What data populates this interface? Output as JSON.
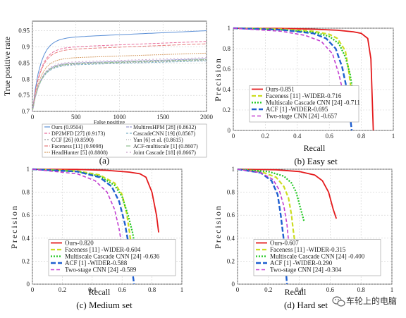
{
  "chart_data": [
    {
      "id": "a",
      "type": "line",
      "caption": "(a)",
      "xlabel": "False positive",
      "ylabel": "True positive rate",
      "xlim": [
        0,
        2000
      ],
      "ylim": [
        0.7,
        0.98
      ],
      "x_ticks": [
        "0",
        "500",
        "1000",
        "1500",
        "2000"
      ],
      "y_ticks": [
        "0.7",
        "0.75",
        "0.8",
        "0.85",
        "0.9",
        "0.95"
      ],
      "grid": true,
      "legend_position": "below",
      "series": [
        {
          "name": "Ours (0.9504)",
          "color": "#5b8fd6",
          "dash": "",
          "final": 0.9504
        },
        {
          "name": "DP2MFD [27] (0.9173)",
          "color": "#e86d9c",
          "dash": "4,2",
          "final": 0.9173
        },
        {
          "name": "CCF [26] (0.8590)",
          "color": "#9a9a9a",
          "dash": "2,2",
          "final": 0.859
        },
        {
          "name": "Faceness [11] (0.9098)",
          "color": "#e87d7d",
          "dash": "5,2",
          "final": 0.9098
        },
        {
          "name": "HeadHunter [5] (0.8808)",
          "color": "#d7a06a",
          "dash": "2,1",
          "final": 0.8808
        },
        {
          "name": "MultiresHPM [28] (0.8632)",
          "color": "#9c9cd0",
          "dash": "4,1",
          "final": 0.8632
        },
        {
          "name": "CascadeCNN [19] (0.8567)",
          "color": "#7fb0c8",
          "dash": "3,2",
          "final": 0.8567
        },
        {
          "name": "Yan [6] et al. (0.8615)",
          "color": "#b0b0b0",
          "dash": "1,2",
          "final": 0.8615
        },
        {
          "name": "ACF-multiscale [1] (0.8607)",
          "color": "#8fbf8f",
          "dash": "6,2",
          "final": 0.8607
        },
        {
          "name": "Joint Cascade [18] (0.8667)",
          "color": "#c9a0c9",
          "dash": "2,3",
          "final": 0.8667
        }
      ]
    },
    {
      "id": "b",
      "type": "line",
      "caption": "(b) Easy set",
      "xlabel": "Recall",
      "ylabel": "Precision",
      "xlim": [
        0,
        1
      ],
      "ylim": [
        0,
        1
      ],
      "x_ticks": [
        "0",
        "0.2",
        "0.4",
        "0.6",
        "0.8",
        "1"
      ],
      "y_ticks": [
        "0",
        "0.2",
        "0.4",
        "0.6",
        "0.8",
        "1"
      ],
      "grid": true,
      "legend_position": "bottom-left",
      "series": [
        {
          "name": "Ours-0.851",
          "color": "#e41a1c",
          "dash": "",
          "width": 1.8,
          "x": [
            0,
            0.3,
            0.5,
            0.65,
            0.75,
            0.8,
            0.84,
            0.86,
            0.875
          ],
          "y": [
            1,
            0.998,
            0.99,
            0.98,
            0.965,
            0.95,
            0.9,
            0.7,
            0.0
          ]
        },
        {
          "name": "Faceness [11] -WIDER-0.716",
          "color": "#ccdd22",
          "dash": "6,3",
          "width": 2.2,
          "x": [
            0,
            0.3,
            0.5,
            0.6,
            0.65,
            0.7,
            0.72,
            0.745
          ],
          "y": [
            1,
            0.99,
            0.97,
            0.94,
            0.9,
            0.78,
            0.6,
            0.3
          ]
        },
        {
          "name": "Multiscale Cascade CNN [24] -0.711",
          "color": "#22c822",
          "dash": "2,2",
          "width": 2.2,
          "x": [
            0,
            0.3,
            0.5,
            0.6,
            0.66,
            0.7,
            0.73,
            0.755
          ],
          "y": [
            1,
            0.985,
            0.96,
            0.92,
            0.85,
            0.72,
            0.55,
            0.3
          ]
        },
        {
          "name": "ACF [1] -WIDER-0.695",
          "color": "#1f5fd0",
          "dash": "7,3",
          "width": 2.4,
          "x": [
            0,
            0.3,
            0.5,
            0.58,
            0.64,
            0.68,
            0.71,
            0.74
          ],
          "y": [
            1,
            0.985,
            0.95,
            0.9,
            0.8,
            0.62,
            0.4,
            0.0
          ]
        },
        {
          "name": "Two-stage CNN [24] -0.657",
          "color": "#c23fd0",
          "dash": "5,3",
          "width": 1.6,
          "x": [
            0,
            0.3,
            0.45,
            0.55,
            0.62,
            0.66,
            0.69,
            0.715
          ],
          "y": [
            1,
            0.97,
            0.93,
            0.87,
            0.75,
            0.55,
            0.35,
            0.1
          ]
        }
      ]
    },
    {
      "id": "c",
      "type": "line",
      "caption": "(c) Medium set",
      "xlabel": "Recall",
      "ylabel": "Precision",
      "xlim": [
        0,
        1
      ],
      "ylim": [
        0,
        1
      ],
      "x_ticks": [
        "0",
        "0.2",
        "0.4",
        "0.6",
        "0.8",
        "1"
      ],
      "y_ticks": [
        "0",
        "0.2",
        "0.4",
        "0.6",
        "0.8",
        "1"
      ],
      "grid": true,
      "legend_position": "bottom-left",
      "series": [
        {
          "name": "Ours-0.820",
          "color": "#e41a1c",
          "dash": "",
          "width": 1.8,
          "x": [
            0,
            0.3,
            0.5,
            0.65,
            0.72,
            0.76,
            0.8,
            0.83,
            0.845
          ],
          "y": [
            1,
            0.998,
            0.99,
            0.975,
            0.96,
            0.93,
            0.8,
            0.6,
            0.45
          ]
        },
        {
          "name": "Faceness [11] -WIDER-0.604",
          "color": "#ccdd22",
          "dash": "6,3",
          "width": 2.2,
          "x": [
            0,
            0.3,
            0.45,
            0.55,
            0.6,
            0.63,
            0.65,
            0.665
          ],
          "y": [
            1,
            0.985,
            0.95,
            0.88,
            0.78,
            0.62,
            0.45,
            0.3
          ]
        },
        {
          "name": "Multiscale Cascade CNN [24] -0.636",
          "color": "#22c822",
          "dash": "2,2",
          "width": 2.2,
          "x": [
            0,
            0.3,
            0.45,
            0.55,
            0.6,
            0.64,
            0.67,
            0.69
          ],
          "y": [
            1,
            0.98,
            0.94,
            0.86,
            0.76,
            0.6,
            0.45,
            0.3
          ]
        },
        {
          "name": "ACF [1] -WIDER-0.588",
          "color": "#1f5fd0",
          "dash": "7,3",
          "width": 2.4,
          "x": [
            0,
            0.3,
            0.45,
            0.53,
            0.58,
            0.62,
            0.65,
            0.68
          ],
          "y": [
            1,
            0.98,
            0.93,
            0.85,
            0.72,
            0.52,
            0.3,
            0.0
          ]
        },
        {
          "name": "Two-stage CNN [24] -0.589",
          "color": "#c23fd0",
          "dash": "5,3",
          "width": 1.6,
          "x": [
            0,
            0.3,
            0.42,
            0.5,
            0.55,
            0.58,
            0.6,
            0.62
          ],
          "y": [
            1,
            0.96,
            0.9,
            0.8,
            0.65,
            0.48,
            0.32,
            0.15
          ]
        }
      ]
    },
    {
      "id": "d",
      "type": "line",
      "caption": "(d) Hard set",
      "xlabel": "Recall",
      "ylabel": "Precision",
      "xlim": [
        0,
        1
      ],
      "ylim": [
        0,
        1
      ],
      "x_ticks": [
        "0",
        "0.2",
        "0.4",
        "0.6",
        "0.8",
        "1"
      ],
      "y_ticks": [
        "0",
        "0.2",
        "0.4",
        "0.6",
        "0.8",
        "1"
      ],
      "grid": true,
      "legend_position": "bottom-left",
      "series": [
        {
          "name": "Ours-0.607",
          "color": "#e41a1c",
          "dash": "",
          "width": 1.8,
          "x": [
            0,
            0.25,
            0.4,
            0.5,
            0.55,
            0.59,
            0.62,
            0.64
          ],
          "y": [
            1,
            0.995,
            0.98,
            0.95,
            0.9,
            0.8,
            0.65,
            0.57
          ]
        },
        {
          "name": "Faceness [11] -WIDER-0.315",
          "color": "#ccdd22",
          "dash": "6,3",
          "width": 2.2,
          "x": [
            0,
            0.15,
            0.25,
            0.3,
            0.33,
            0.35,
            0.36,
            0.37
          ],
          "y": [
            1,
            0.98,
            0.93,
            0.85,
            0.75,
            0.6,
            0.48,
            0.38
          ]
        },
        {
          "name": "Multiscale Cascade CNN [24] -0.400",
          "color": "#22c822",
          "dash": "2,2",
          "width": 2.2,
          "x": [
            0,
            0.2,
            0.3,
            0.35,
            0.38,
            0.4,
            0.42,
            0.43
          ],
          "y": [
            1,
            0.98,
            0.94,
            0.88,
            0.8,
            0.7,
            0.6,
            0.55
          ]
        },
        {
          "name": "ACF [1] -WIDER-0.290",
          "color": "#1f5fd0",
          "dash": "7,3",
          "width": 2.4,
          "x": [
            0,
            0.15,
            0.22,
            0.26,
            0.28,
            0.3,
            0.31,
            0.32
          ],
          "y": [
            1,
            0.97,
            0.9,
            0.78,
            0.6,
            0.38,
            0.18,
            0.0
          ]
        },
        {
          "name": "Two-stage CNN [24] -0.304",
          "color": "#c23fd0",
          "dash": "5,3",
          "width": 1.6,
          "x": [
            0,
            0.15,
            0.23,
            0.27,
            0.3,
            0.32,
            0.33,
            0.34
          ],
          "y": [
            1,
            0.97,
            0.91,
            0.82,
            0.68,
            0.52,
            0.38,
            0.25
          ]
        }
      ]
    }
  ],
  "watermark": {
    "text": "车轮上的电脑",
    "icon": "wechat-icon"
  }
}
